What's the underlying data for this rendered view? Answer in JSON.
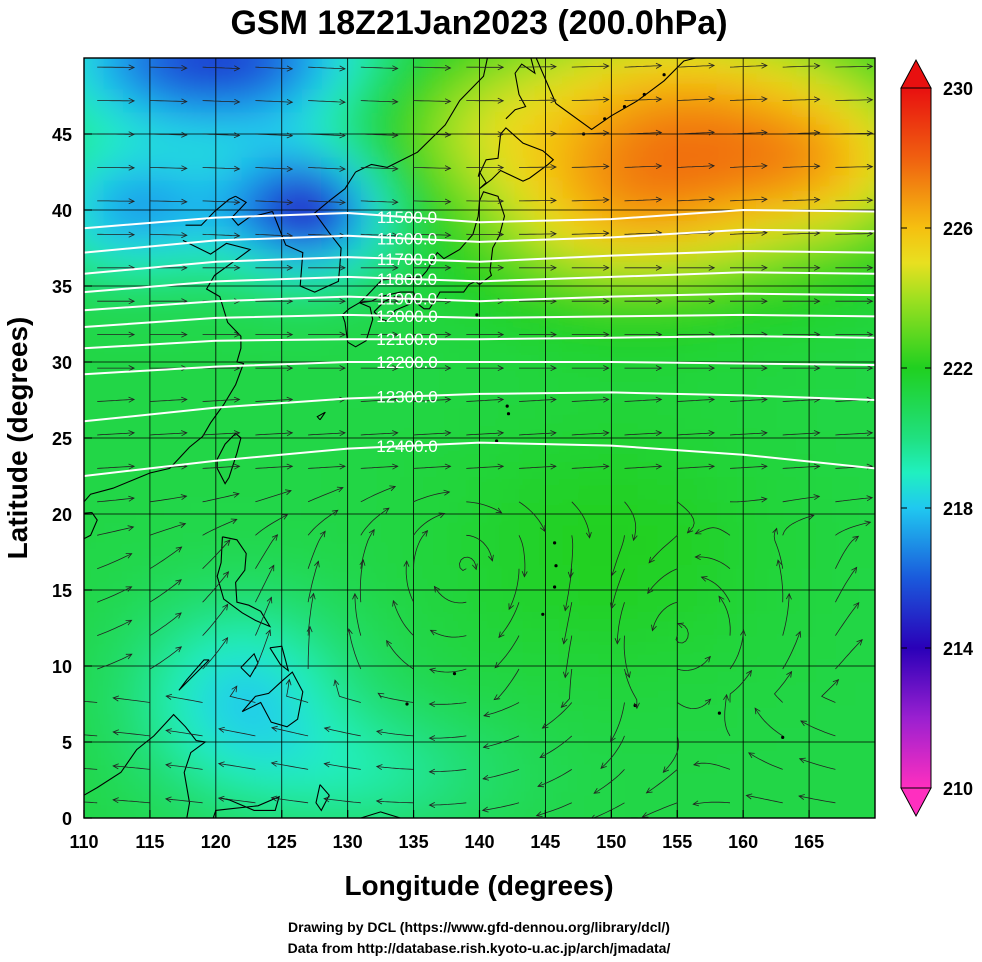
{
  "title": "GSM 18Z21Jan2023 (200.0hPa)",
  "xlabel": "Longitude (degrees)",
  "ylabel": "Latitude  (degrees)",
  "credits": [
    "Drawing by DCL (https://www.gfd-dennou.org/library/dcl/)",
    "Data from http://database.rish.kyoto-u.ac.jp/arch/jmadata/"
  ],
  "chart_data": {
    "type": "heatmap",
    "variable": "temperature",
    "xlim": [
      110,
      170
    ],
    "ylim": [
      0,
      50
    ],
    "xticks": [
      "110",
      "115",
      "120",
      "125",
      "130",
      "135",
      "140",
      "145",
      "150",
      "155",
      "160",
      "165"
    ],
    "yticks": [
      "0",
      "5",
      "10",
      "15",
      "20",
      "25",
      "30",
      "35",
      "40",
      "45"
    ],
    "colorbar": {
      "min": 210,
      "max": 230,
      "labels": [
        "230",
        "226",
        "222",
        "218",
        "214",
        "210"
      ],
      "stops": [
        {
          "value": 210,
          "color": "#ff2fbf"
        },
        {
          "value": 212,
          "color": "#9a20d0"
        },
        {
          "value": 214,
          "color": "#2a00b8"
        },
        {
          "value": 216,
          "color": "#1a5adc"
        },
        {
          "value": 218,
          "color": "#20c8f0"
        },
        {
          "value": 219,
          "color": "#20f0c0"
        },
        {
          "value": 220,
          "color": "#20e080"
        },
        {
          "value": 222,
          "color": "#20d020"
        },
        {
          "value": 224,
          "color": "#a0e020"
        },
        {
          "value": 225,
          "color": "#e8e020"
        },
        {
          "value": 226,
          "color": "#f5c010"
        },
        {
          "value": 228,
          "color": "#f06010"
        },
        {
          "value": 230,
          "color": "#e81010"
        }
      ]
    },
    "contours": [
      {
        "label": "11500.0",
        "points": [
          [
            110,
            38.8
          ],
          [
            120,
            39.5
          ],
          [
            130,
            39.8
          ],
          [
            140,
            39.2
          ],
          [
            150,
            39.4
          ],
          [
            160,
            40.0
          ],
          [
            170,
            39.9
          ]
        ]
      },
      {
        "label": "11600.0",
        "points": [
          [
            110,
            37.2
          ],
          [
            120,
            38.0
          ],
          [
            130,
            38.3
          ],
          [
            140,
            37.9
          ],
          [
            150,
            38.2
          ],
          [
            160,
            38.7
          ],
          [
            170,
            38.6
          ]
        ]
      },
      {
        "label": "11700.0",
        "points": [
          [
            110,
            35.8
          ],
          [
            120,
            36.6
          ],
          [
            130,
            36.9
          ],
          [
            140,
            36.6
          ],
          [
            150,
            37.0
          ],
          [
            160,
            37.3
          ],
          [
            170,
            37.2
          ]
        ]
      },
      {
        "label": "11800.0",
        "points": [
          [
            110,
            34.6
          ],
          [
            120,
            35.3
          ],
          [
            130,
            35.6
          ],
          [
            140,
            35.3
          ],
          [
            150,
            35.6
          ],
          [
            160,
            35.9
          ],
          [
            170,
            35.8
          ]
        ]
      },
      {
        "label": "11900.0",
        "points": [
          [
            110,
            33.4
          ],
          [
            120,
            34.0
          ],
          [
            130,
            34.3
          ],
          [
            140,
            34.0
          ],
          [
            150,
            34.3
          ],
          [
            160,
            34.5
          ],
          [
            170,
            34.4
          ]
        ]
      },
      {
        "label": "12000.0",
        "points": [
          [
            110,
            32.3
          ],
          [
            120,
            32.9
          ],
          [
            130,
            33.1
          ],
          [
            140,
            32.9
          ],
          [
            150,
            33.0
          ],
          [
            160,
            33.1
          ],
          [
            170,
            33.0
          ]
        ]
      },
      {
        "label": "12100.0",
        "points": [
          [
            110,
            30.9
          ],
          [
            120,
            31.4
          ],
          [
            130,
            31.5
          ],
          [
            140,
            31.5
          ],
          [
            150,
            31.6
          ],
          [
            160,
            31.7
          ],
          [
            170,
            31.6
          ]
        ]
      },
      {
        "label": "12200.0",
        "points": [
          [
            110,
            29.2
          ],
          [
            120,
            29.7
          ],
          [
            130,
            30.0
          ],
          [
            140,
            30.0
          ],
          [
            150,
            30.0
          ],
          [
            160,
            29.9
          ],
          [
            170,
            29.8
          ]
        ]
      },
      {
        "label": "12300.0",
        "points": [
          [
            110,
            26.1
          ],
          [
            120,
            27.0
          ],
          [
            130,
            27.6
          ],
          [
            140,
            27.9
          ],
          [
            150,
            28.0
          ],
          [
            160,
            27.8
          ],
          [
            170,
            27.5
          ]
        ]
      },
      {
        "label": "12400.0",
        "points": [
          [
            110,
            22.5
          ],
          [
            120,
            23.5
          ],
          [
            130,
            24.3
          ],
          [
            140,
            24.7
          ],
          [
            150,
            24.5
          ],
          [
            160,
            23.9
          ],
          [
            170,
            23.0
          ]
        ]
      }
    ],
    "streamline_features": [
      {
        "kind": "anticyclone",
        "lon": 139,
        "lat": 16.5
      },
      {
        "kind": "cyclone",
        "lon": 155,
        "lat": 12
      }
    ]
  }
}
